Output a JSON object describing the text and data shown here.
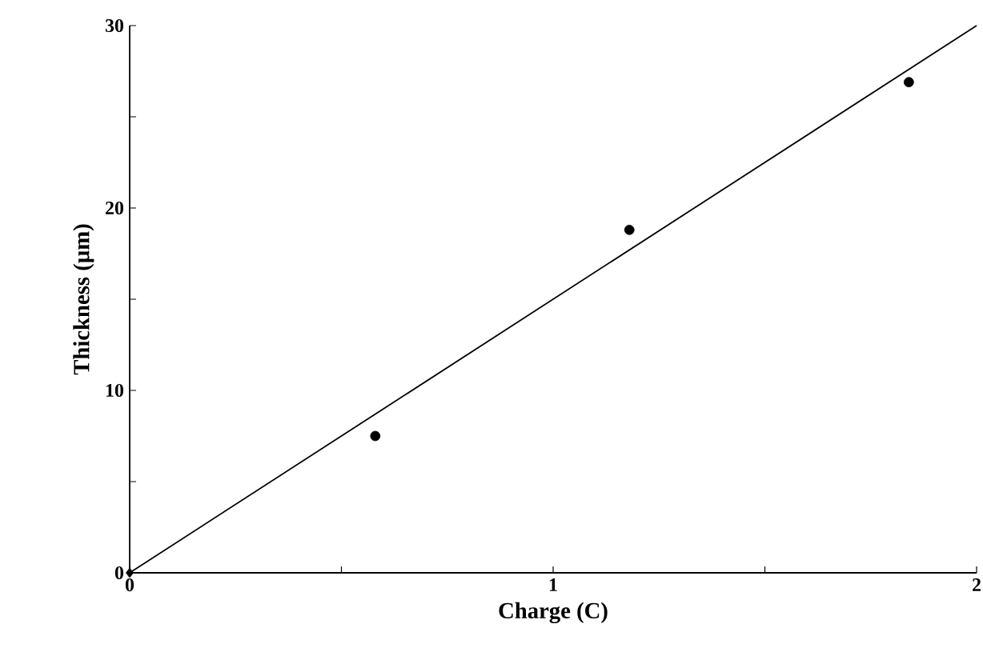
{
  "chart_data": {
    "type": "scatter",
    "xlabel": "Charge (C)",
    "ylabel": "Thickness (µm)",
    "xlim": [
      0,
      2
    ],
    "ylim": [
      0,
      30
    ],
    "xticks": [
      0,
      {
        "value": 0.5,
        "label": null
      },
      1,
      {
        "value": 1.5,
        "label": null
      },
      2
    ],
    "yticks": [
      0,
      {
        "value": 5,
        "label": null
      },
      10,
      {
        "value": 15,
        "label": null
      },
      20,
      {
        "value": 25,
        "label": null
      },
      30
    ],
    "grid": false,
    "series": [
      {
        "marker": "diamond",
        "color": "#000000",
        "x": [
          0
        ],
        "values": [
          0
        ]
      },
      {
        "marker": "circle",
        "color": "#000000",
        "x": [
          0.58,
          1.18,
          1.84
        ],
        "values": [
          7.5,
          18.8,
          26.9
        ]
      },
      {
        "type": "line",
        "marker": "none",
        "line_style": "solid",
        "color": "#000000",
        "x": [
          0,
          2
        ],
        "values": [
          0,
          30
        ]
      }
    ]
  }
}
